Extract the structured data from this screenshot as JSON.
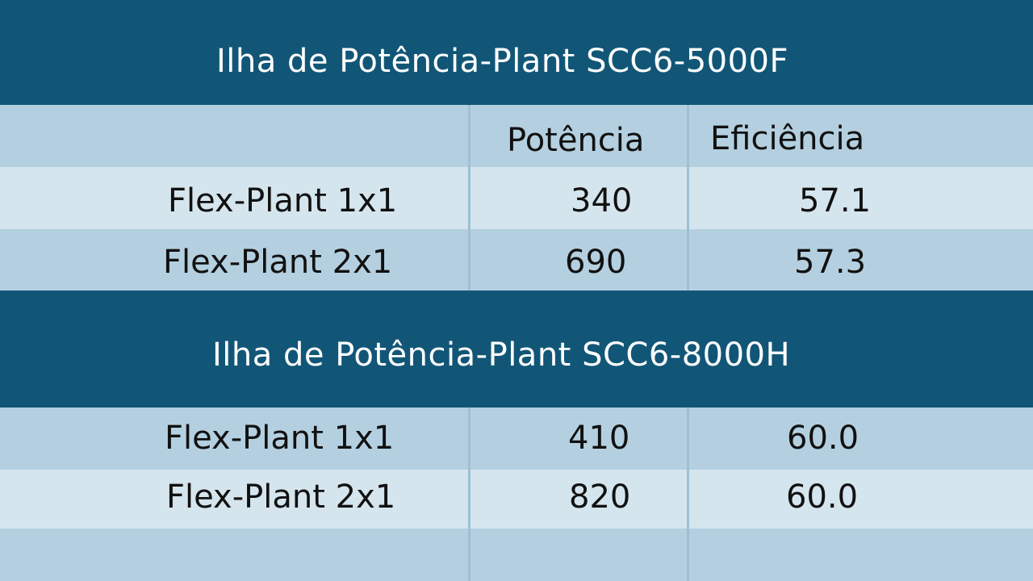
{
  "colors": {
    "title_band": "#125677",
    "row_light": "#d5e5ee",
    "row_mid": "#b4d0e0",
    "divider": "#9ec0d2",
    "text_dark": "#111111",
    "text_light": "#ffffff"
  },
  "sections": [
    {
      "title": "Ilha de Potência-Plant SCC6-5000F",
      "headers": [
        "Potência",
        "Eficiência"
      ],
      "rows": [
        {
          "label": "Flex-Plant 1x1",
          "potencia": "340",
          "eficiencia": "57.1"
        },
        {
          "label": "Flex-Plant 2x1",
          "potencia": "690",
          "eficiencia": "57.3"
        }
      ]
    },
    {
      "title": "Ilha de Potência-Plant SCC6-8000H",
      "rows": [
        {
          "label": "Flex-Plant 1x1",
          "potencia": "410",
          "eficiencia": "60.0"
        },
        {
          "label": "Flex-Plant 2x1",
          "potencia": "820",
          "eficiencia": "60.0"
        }
      ]
    }
  ]
}
